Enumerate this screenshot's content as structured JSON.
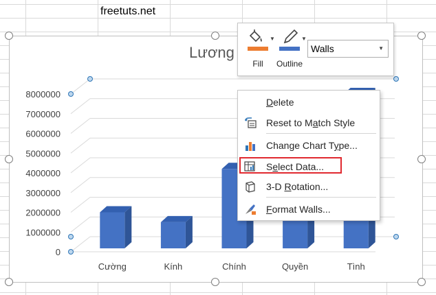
{
  "sheet": {
    "cell_text": "freetuts.net"
  },
  "chart": {
    "title_visible": "Lương"
  },
  "chart_data": {
    "type": "bar",
    "categories": [
      "Cường",
      "Kính",
      "Chính",
      "Quyền",
      "Tình"
    ],
    "values": [
      2000000,
      1500000,
      4200000,
      5000000,
      8000000
    ],
    "yticks": [
      "8000000",
      "7000000",
      "6000000",
      "5000000",
      "4000000",
      "3000000",
      "2000000",
      "1000000",
      "0"
    ],
    "ylim": [
      0,
      8000000
    ],
    "bar_color": "#4472c4",
    "grid": true
  },
  "mini_toolbar": {
    "fill_label": "Fill",
    "outline_label": "Outline",
    "element_select": "Walls",
    "fill_color": "#ed7d31",
    "outline_color": "#4472c4"
  },
  "context_menu": {
    "items": [
      {
        "pre": "",
        "key": "D",
        "post": "elete"
      },
      {
        "pre": "Reset to M",
        "key": "a",
        "post": "tch Style"
      },
      {
        "pre": "Change Chart T",
        "key": "y",
        "post": "pe..."
      },
      {
        "pre": "S",
        "key": "e",
        "post": "lect Data..."
      },
      {
        "pre": "3-D ",
        "key": "R",
        "post": "otation..."
      },
      {
        "pre": "",
        "key": "F",
        "post": "ormat Walls..."
      }
    ],
    "highlight_color": "#e0282e"
  }
}
